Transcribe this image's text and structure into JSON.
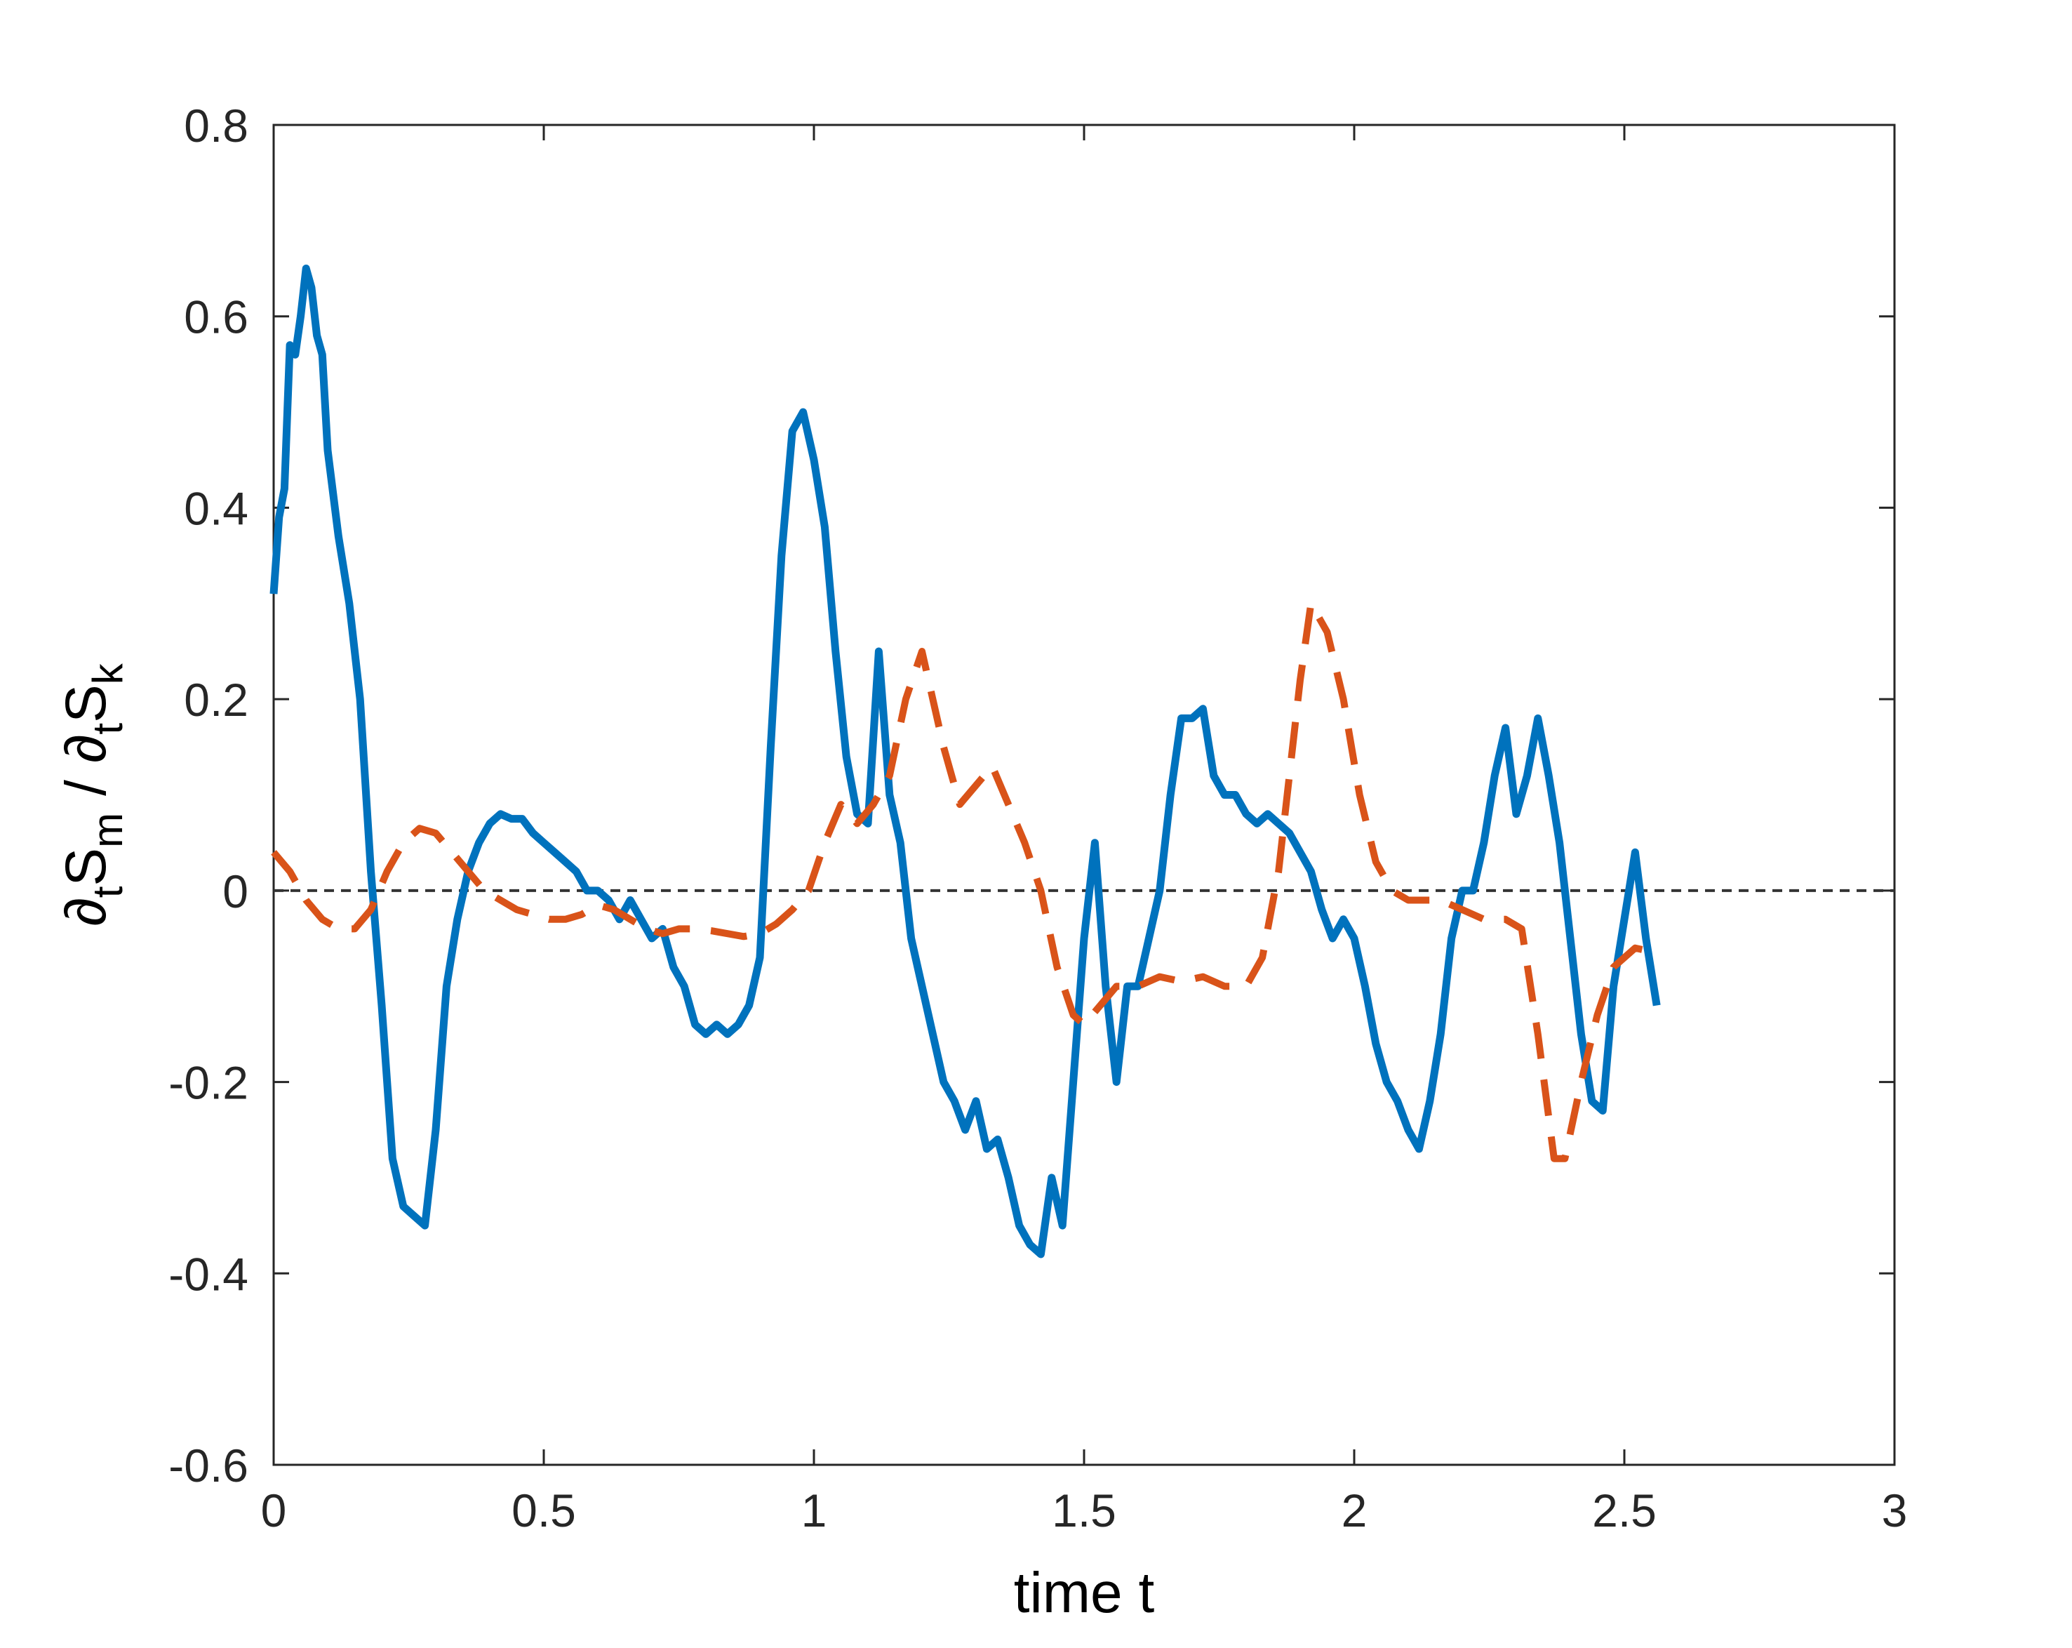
{
  "chart_data": {
    "type": "line",
    "title": "",
    "xlabel": "time  t",
    "ylabel": "∂tSm / ∂tSk",
    "ylabel_parts": {
      "num_symbol": "∂",
      "num_sub": "t",
      "num_main": "S",
      "num_main_sub": "m",
      "slash": "/",
      "den_symbol": "∂",
      "den_sub": "t",
      "den_main": "S",
      "den_main_sub": "k"
    },
    "xlim": [
      0,
      3
    ],
    "ylim": [
      -0.6,
      0.8
    ],
    "xticks": [
      0,
      0.5,
      1,
      1.5,
      2,
      2.5,
      3
    ],
    "xtick_labels": [
      "0",
      "0.5",
      "1",
      "1.5",
      "2",
      "2.5",
      "3"
    ],
    "yticks": [
      -0.6,
      -0.4,
      -0.2,
      0,
      0.2,
      0.4,
      0.6,
      0.8
    ],
    "ytick_labels": [
      "-0.6",
      "-0.4",
      "-0.2",
      "0",
      "0.2",
      "0.4",
      "0.6",
      "0.8"
    ],
    "grid": false,
    "reference_line": {
      "y": 0,
      "color": "#333333",
      "style": "dashed"
    },
    "series": [
      {
        "color": "#0072BD",
        "style": "solid",
        "x": [
          0,
          0.01,
          0.02,
          0.03,
          0.04,
          0.05,
          0.06,
          0.07,
          0.08,
          0.09,
          0.1,
          0.12,
          0.14,
          0.16,
          0.18,
          0.2,
          0.22,
          0.24,
          0.26,
          0.28,
          0.3,
          0.32,
          0.34,
          0.36,
          0.38,
          0.4,
          0.42,
          0.44,
          0.46,
          0.48,
          0.5,
          0.52,
          0.54,
          0.56,
          0.58,
          0.6,
          0.62,
          0.64,
          0.66,
          0.68,
          0.7,
          0.72,
          0.74,
          0.76,
          0.78,
          0.8,
          0.82,
          0.84,
          0.86,
          0.88,
          0.9,
          0.92,
          0.94,
          0.96,
          0.98,
          1.0,
          1.02,
          1.04,
          1.06,
          1.08,
          1.1,
          1.12,
          1.14,
          1.16,
          1.18,
          1.2,
          1.22,
          1.24,
          1.26,
          1.28,
          1.3,
          1.32,
          1.34,
          1.36,
          1.38,
          1.4,
          1.42,
          1.44,
          1.46,
          1.48,
          1.5,
          1.52,
          1.54,
          1.56,
          1.58,
          1.6,
          1.62,
          1.64,
          1.66,
          1.68,
          1.7,
          1.72,
          1.74,
          1.76,
          1.78,
          1.8,
          1.82,
          1.84,
          1.86,
          1.88,
          1.9,
          1.92,
          1.94,
          1.96,
          1.98,
          2.0,
          2.02,
          2.04,
          2.06,
          2.08,
          2.1,
          2.12,
          2.14,
          2.16,
          2.18,
          2.2,
          2.22,
          2.24,
          2.26,
          2.28,
          2.3,
          2.32,
          2.34,
          2.36,
          2.38,
          2.4,
          2.42,
          2.44,
          2.46,
          2.48,
          2.5,
          2.52,
          2.54,
          2.56
        ],
        "y": [
          0.31,
          0.39,
          0.42,
          0.57,
          0.56,
          0.6,
          0.65,
          0.63,
          0.58,
          0.56,
          0.46,
          0.37,
          0.3,
          0.2,
          0.02,
          -0.12,
          -0.28,
          -0.33,
          -0.34,
          -0.35,
          -0.25,
          -0.1,
          -0.03,
          0.02,
          0.05,
          0.07,
          0.08,
          0.075,
          0.075,
          0.06,
          0.05,
          0.04,
          0.03,
          0.02,
          0.0,
          0.0,
          -0.01,
          -0.03,
          -0.01,
          -0.03,
          -0.05,
          -0.04,
          -0.08,
          -0.1,
          -0.14,
          -0.15,
          -0.14,
          -0.15,
          -0.14,
          -0.12,
          -0.07,
          0.15,
          0.35,
          0.48,
          0.5,
          0.45,
          0.38,
          0.25,
          0.14,
          0.08,
          0.07,
          0.25,
          0.1,
          0.05,
          -0.05,
          -0.1,
          -0.15,
          -0.2,
          -0.22,
          -0.25,
          -0.22,
          -0.27,
          -0.26,
          -0.3,
          -0.35,
          -0.37,
          -0.38,
          -0.3,
          -0.35,
          -0.2,
          -0.05,
          0.05,
          -0.1,
          -0.2,
          -0.1,
          -0.1,
          -0.05,
          0.0,
          0.1,
          0.18,
          0.18,
          0.19,
          0.12,
          0.1,
          0.1,
          0.08,
          0.07,
          0.08,
          0.07,
          0.06,
          0.04,
          0.02,
          -0.02,
          -0.05,
          -0.03,
          -0.05,
          -0.1,
          -0.16,
          -0.2,
          -0.22,
          -0.25,
          -0.27,
          -0.22,
          -0.15,
          -0.05,
          0.0,
          0.0,
          0.05,
          0.12,
          0.17,
          0.08,
          0.12,
          0.18,
          0.12,
          0.05,
          -0.05,
          -0.15,
          -0.22,
          -0.23,
          -0.1,
          -0.03,
          0.04,
          -0.05,
          -0.12
        ]
      },
      {
        "color": "#D95319",
        "style": "dashed",
        "x": [
          0,
          0.03,
          0.06,
          0.09,
          0.12,
          0.15,
          0.18,
          0.21,
          0.24,
          0.27,
          0.3,
          0.33,
          0.36,
          0.39,
          0.42,
          0.45,
          0.48,
          0.51,
          0.54,
          0.57,
          0.6,
          0.63,
          0.66,
          0.69,
          0.72,
          0.75,
          0.78,
          0.81,
          0.84,
          0.87,
          0.9,
          0.93,
          0.96,
          0.99,
          1.02,
          1.05,
          1.08,
          1.11,
          1.14,
          1.17,
          1.2,
          1.22,
          1.24,
          1.27,
          1.3,
          1.33,
          1.36,
          1.39,
          1.42,
          1.45,
          1.48,
          1.5,
          1.53,
          1.56,
          1.6,
          1.64,
          1.68,
          1.72,
          1.76,
          1.8,
          1.83,
          1.86,
          1.88,
          1.9,
          1.92,
          1.95,
          1.98,
          2.01,
          2.04,
          2.07,
          2.1,
          2.13,
          2.16,
          2.2,
          2.24,
          2.28,
          2.31,
          2.34,
          2.37,
          2.39,
          2.42,
          2.45,
          2.48,
          2.52,
          2.56
        ],
        "y": [
          0.04,
          0.02,
          -0.01,
          -0.03,
          -0.04,
          -0.04,
          -0.02,
          0.02,
          0.05,
          0.065,
          0.06,
          0.04,
          0.02,
          0.0,
          -0.01,
          -0.02,
          -0.025,
          -0.03,
          -0.03,
          -0.025,
          -0.015,
          -0.02,
          -0.03,
          -0.04,
          -0.045,
          -0.04,
          -0.04,
          -0.042,
          -0.045,
          -0.048,
          -0.045,
          -0.035,
          -0.02,
          0.0,
          0.05,
          0.09,
          0.07,
          0.09,
          0.12,
          0.2,
          0.25,
          0.2,
          0.15,
          0.09,
          0.11,
          0.13,
          0.09,
          0.05,
          0.0,
          -0.08,
          -0.13,
          -0.14,
          -0.12,
          -0.1,
          -0.1,
          -0.09,
          -0.095,
          -0.09,
          -0.1,
          -0.1,
          -0.07,
          0.02,
          0.12,
          0.22,
          0.3,
          0.27,
          0.2,
          0.1,
          0.03,
          0.0,
          -0.01,
          -0.01,
          -0.01,
          -0.02,
          -0.03,
          -0.03,
          -0.04,
          -0.15,
          -0.28,
          -0.28,
          -0.2,
          -0.13,
          -0.08,
          -0.06,
          -0.065
        ]
      }
    ]
  }
}
